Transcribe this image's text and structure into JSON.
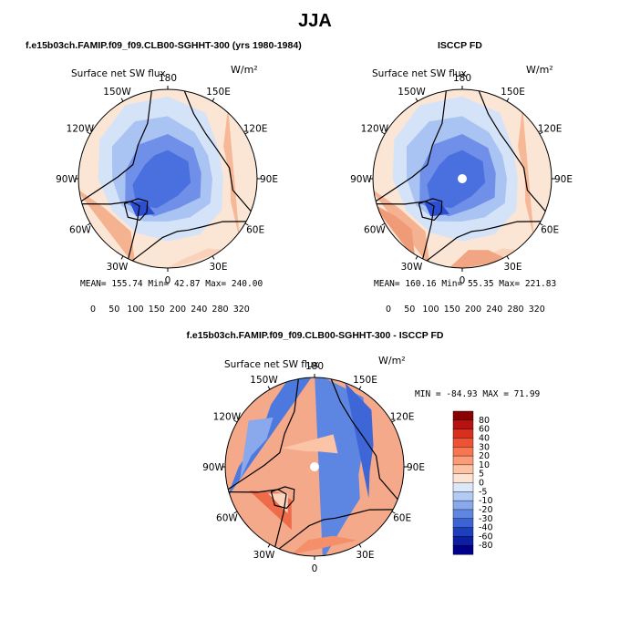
{
  "title": "JJA",
  "case_a": "f.e15b03ch.FAMIP.f09_f09.CLB00-SGHHT-300 (yrs 1980-1984)",
  "case_b": "ISCCP FD",
  "case_diff": "f.e15b03ch.FAMIP.f09_f09.CLB00-SGHHT-300 - ISCCP FD",
  "colors": {
    "outline": "#000000",
    "pole_hole": "#ffffff"
  },
  "chart_data": [
    {
      "type": "heatmap",
      "projection": "north-polar-stereographic",
      "title": "Surface net SW flux",
      "units": "W/m²",
      "longitude_labels": [
        "180",
        "150E",
        "120E",
        "90E",
        "60E",
        "30E",
        "0",
        "30W",
        "60W",
        "90W",
        "120W",
        "150W"
      ],
      "stats": {
        "mean": "155.74",
        "min": "42.87",
        "max": "240.00"
      },
      "stats_text": "MEAN= 155.74   Min=   42.87   Max= 240.00",
      "colorbar": {
        "orientation": "horizontal",
        "tick_labels": [
          "0",
          "50",
          "100",
          "150",
          "200",
          "240",
          "280",
          "320"
        ],
        "colors": [
          "#00008b",
          "#0d2fb5",
          "#2a55d4",
          "#4a74e6",
          "#7097ee",
          "#98b6f2",
          "#bcd2f7",
          "#dde9fb",
          "#f5f5f5",
          "#fde0c8",
          "#fbc1a0",
          "#f79a77",
          "#ef7150",
          "#df4630",
          "#c21e14",
          "#8b0000"
        ]
      }
    },
    {
      "type": "heatmap",
      "projection": "north-polar-stereographic",
      "title": "Surface net SW flux",
      "units": "W/m²",
      "longitude_labels": [
        "180",
        "150E",
        "120E",
        "90E",
        "60E",
        "30E",
        "0",
        "30W",
        "60W",
        "90W",
        "120W",
        "150W"
      ],
      "stats": {
        "mean": "160.16",
        "min": "55.35",
        "max": "221.83"
      },
      "stats_text": "MEAN= 160.16   Min=   55.35   Max= 221.83",
      "colorbar": {
        "orientation": "horizontal",
        "tick_labels": [
          "0",
          "50",
          "100",
          "150",
          "200",
          "240",
          "280",
          "320"
        ],
        "colors": [
          "#00008b",
          "#0d2fb5",
          "#2a55d4",
          "#4a74e6",
          "#7097ee",
          "#98b6f2",
          "#bcd2f7",
          "#dde9fb",
          "#f5f5f5",
          "#fde0c8",
          "#fbc1a0",
          "#f79a77",
          "#ef7150",
          "#df4630",
          "#c21e14",
          "#8b0000"
        ]
      }
    },
    {
      "type": "heatmap",
      "projection": "north-polar-stereographic",
      "title": "Surface net SW flux",
      "units": "W/m²",
      "longitude_labels": [
        "180",
        "150E",
        "120E",
        "90E",
        "60E",
        "30E",
        "0",
        "30W",
        "60W",
        "90W",
        "120W",
        "150W"
      ],
      "stats": {
        "min": "-84.93",
        "max": "71.99"
      },
      "stats_text": "MIN = -84.93 MAX =  71.99",
      "colorbar": {
        "orientation": "vertical",
        "tick_labels": [
          "80",
          "60",
          "40",
          "30",
          "20",
          "10",
          "5",
          "0",
          "-5",
          "-10",
          "-20",
          "-30",
          "-40",
          "-60",
          "-80"
        ],
        "colors": [
          "#8b0000",
          "#b81210",
          "#d9301e",
          "#ee5234",
          "#f77650",
          "#fb9c76",
          "#fdc3a4",
          "#fde4d2",
          "#dbe8fa",
          "#b3cbf4",
          "#89a9ec",
          "#5f87e2",
          "#3a63d4",
          "#1d3fbd",
          "#0b1fa0",
          "#00008b"
        ]
      }
    }
  ]
}
